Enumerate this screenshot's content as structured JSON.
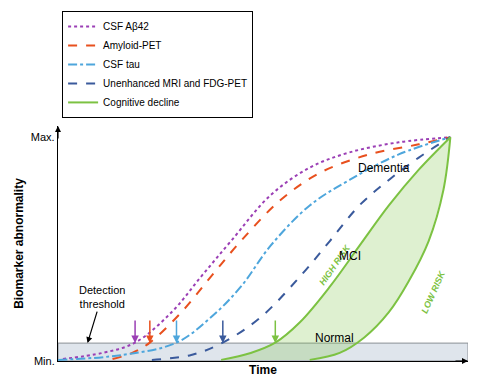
{
  "chart_data": {
    "type": "line",
    "xlabel": "Time",
    "ylabel": "Biomarker abnormality",
    "xlim": [
      0,
      100
    ],
    "ylim": [
      0,
      105
    ],
    "yticks": [
      {
        "value": 0,
        "label": "Min."
      },
      {
        "value": 100,
        "label": "Max."
      }
    ],
    "tick_labels": "y",
    "grid": false,
    "legend": "upper left",
    "threshold": {
      "text_lines": [
        "Detection",
        "threshold"
      ],
      "value": 8,
      "arrow_x": 7.2,
      "color": "#000000"
    },
    "series": [
      {
        "name": "CSF Aβ42",
        "color": "#9b3fb5",
        "line_style": "dot",
        "threshold_x": 18.8,
        "x": [
          1.2,
          10.8,
          18.8,
          27.7,
          34.9,
          42.2,
          51.8,
          61.4,
          71.1,
          83.1,
          95.7
        ],
        "values": [
          0.9,
          3.6,
          8.2,
          21.8,
          37.7,
          53.6,
          74,
          86.4,
          93.2,
          97.7,
          100
        ]
      },
      {
        "name": "Amyloid-PET",
        "color": "#e8501e",
        "line_style": "dash",
        "threshold_x": 22.4,
        "x": [
          13.3,
          18.1,
          22.4,
          30.1,
          37.3,
          44.6,
          54.2,
          63.9,
          75.9,
          88,
          95.7
        ],
        "values": [
          0.9,
          3.6,
          8.2,
          21.8,
          37.7,
          53.6,
          71.8,
          84.1,
          92.3,
          96.8,
          100
        ]
      },
      {
        "name": "CSF tau",
        "color": "#4ea6dc",
        "line_style": "dashdot",
        "threshold_x": 28.9,
        "x": [
          0,
          15.7,
          28.9,
          37.3,
          44.6,
          51.8,
          61.4,
          71.1,
          83.1,
          95.7
        ],
        "values": [
          0.5,
          2.7,
          8.2,
          19.5,
          33.2,
          51.4,
          69.5,
          80.9,
          92.3,
          100
        ]
      },
      {
        "name": "Unenhanced MRI and FDG-PET",
        "color": "#3a5a9c",
        "line_style": "dash",
        "threshold_x": 40.2,
        "x": [
          22.9,
          32.5,
          40.2,
          49.4,
          59,
          66.3,
          73.5,
          80.7,
          88,
          95.7
        ],
        "values": [
          0.5,
          2.7,
          8.2,
          19.5,
          37.7,
          53.6,
          69.5,
          80.9,
          90.9,
          100
        ]
      },
      {
        "name": "Cognitive decline",
        "color": "#7cc242",
        "line_style": "solid",
        "threshold_x": 53,
        "curves": [
          {
            "label": "HIGH RISK",
            "label_x": 67.5,
            "label_y": 43,
            "x": [
              39.8,
              47,
              53,
              59,
              66.3,
              73.5,
              80.7,
              88,
              95.7
            ],
            "values": [
              0.5,
              3.6,
              8.2,
              17.3,
              33.2,
              51.4,
              69.5,
              85.5,
              100
            ]
          },
          {
            "label": "LOW RISK",
            "label_x": 91.5,
            "label_y": 31,
            "x": [
              61.4,
              68.7,
              74.7,
              80.7,
              85.5,
              90.4,
              94,
              95.7
            ],
            "values": [
              0.5,
              3.6,
              10.5,
              21.8,
              35.5,
              53.6,
              76.4,
              100
            ]
          }
        ]
      }
    ],
    "annotations": [
      {
        "text": "Dementia",
        "x": 79.5,
        "y": 86.4
      },
      {
        "text": "MCI",
        "x": 71.1,
        "y": 46.8
      },
      {
        "text": "Normal",
        "x": 67.5,
        "y": 10.5
      }
    ]
  }
}
